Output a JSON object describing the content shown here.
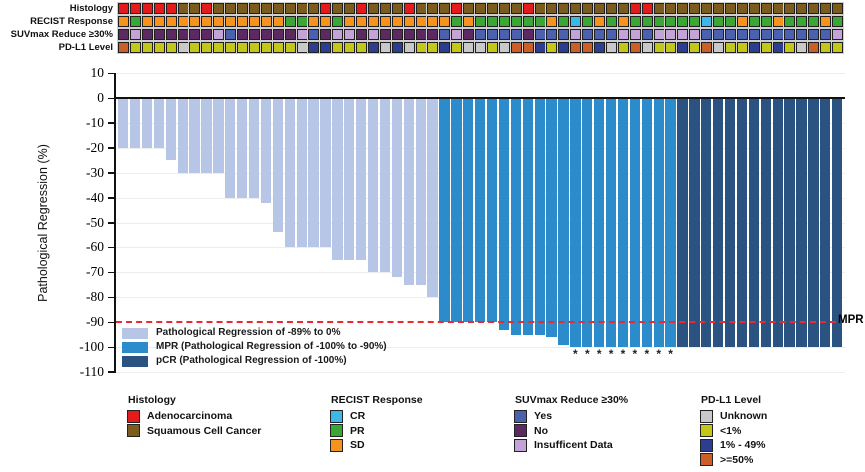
{
  "figure": {
    "mpr_label": "MPR"
  },
  "colors": {
    "adenocarcinoma": "#e31b1c",
    "squamous": "#7b5c1e",
    "cr": "#3db7e8",
    "pr": "#3aa634",
    "sd": "#f6921e",
    "suv_yes": "#4c61ae",
    "suv_no": "#5c2a60",
    "suv_insufficient": "#c4a4d6",
    "pdl1_unknown": "#c9c9c9",
    "pdl1_lt1": "#c3c719",
    "pdl1_1_49": "#2b3e92",
    "pdl1_ge50": "#cc5f27",
    "bar_light": "#b7c6e6",
    "bar_mpr": "#2c8bca",
    "bar_pcr": "#2b5381",
    "mpr_line": "#ea2a30"
  },
  "tracks": {
    "labels": [
      "Histology",
      "RECIST Response",
      "SUVmax Reduce ≥30%",
      "PD-L1 Level"
    ],
    "keys": [
      "histology",
      "recist",
      "suvmax",
      "pdl1"
    ],
    "code_colors": {
      "histology": {
        "A": "adenocarcinoma",
        "S": "squamous"
      },
      "recist": {
        "CR": "cr",
        "PR": "pr",
        "SD": "sd"
      },
      "suvmax": {
        "Y": "suv_yes",
        "N": "suv_no",
        "I": "suv_insufficient"
      },
      "pdl1": {
        "U": "pdl1_unknown",
        "L": "pdl1_lt1",
        "M": "pdl1_1_49",
        "H": "pdl1_ge50"
      }
    },
    "histology": [
      "A",
      "A",
      "A",
      "A",
      "A",
      "S",
      "S",
      "A",
      "S",
      "S",
      "S",
      "S",
      "S",
      "S",
      "S",
      "S",
      "S",
      "A",
      "S",
      "S",
      "A",
      "S",
      "S",
      "S",
      "A",
      "S",
      "S",
      "S",
      "A",
      "S",
      "S",
      "S",
      "S",
      "S",
      "A",
      "S",
      "S",
      "S",
      "S",
      "S",
      "S",
      "S",
      "S",
      "A",
      "A",
      "S",
      "S",
      "S",
      "S",
      "S",
      "S",
      "S",
      "S",
      "S",
      "S",
      "S",
      "S",
      "S",
      "S",
      "S",
      "S"
    ],
    "recist": [
      "SD",
      "PR",
      "SD",
      "SD",
      "SD",
      "SD",
      "SD",
      "SD",
      "SD",
      "SD",
      "SD",
      "SD",
      "SD",
      "SD",
      "PR",
      "PR",
      "SD",
      "SD",
      "PR",
      "SD",
      "SD",
      "SD",
      "SD",
      "SD",
      "SD",
      "SD",
      "SD",
      "SD",
      "PR",
      "SD",
      "PR",
      "PR",
      "PR",
      "PR",
      "PR",
      "PR",
      "SD",
      "PR",
      "CR",
      "PR",
      "SD",
      "PR",
      "SD",
      "PR",
      "PR",
      "PR",
      "PR",
      "PR",
      "PR",
      "CR",
      "PR",
      "PR",
      "SD",
      "PR",
      "PR",
      "SD",
      "PR",
      "PR",
      "PR",
      "SD",
      "PR"
    ],
    "suvmax": [
      "N",
      "I",
      "N",
      "N",
      "N",
      "N",
      "N",
      "N",
      "I",
      "Y",
      "N",
      "N",
      "N",
      "N",
      "N",
      "I",
      "Y",
      "N",
      "I",
      "I",
      "N",
      "I",
      "N",
      "N",
      "N",
      "N",
      "N",
      "Y",
      "I",
      "N",
      "Y",
      "Y",
      "Y",
      "Y",
      "N",
      "Y",
      "Y",
      "Y",
      "I",
      "Y",
      "Y",
      "Y",
      "I",
      "I",
      "Y",
      "I",
      "I",
      "I",
      "I",
      "Y",
      "Y",
      "Y",
      "Y",
      "Y",
      "Y",
      "Y",
      "Y",
      "Y",
      "Y",
      "Y",
      "I"
    ],
    "pdl1": [
      "H",
      "L",
      "L",
      "L",
      "L",
      "U",
      "L",
      "L",
      "L",
      "L",
      "L",
      "L",
      "L",
      "L",
      "L",
      "U",
      "M",
      "M",
      "L",
      "L",
      "L",
      "M",
      "U",
      "M",
      "U",
      "L",
      "L",
      "M",
      "L",
      "U",
      "U",
      "L",
      "U",
      "H",
      "H",
      "M",
      "L",
      "M",
      "H",
      "H",
      "M",
      "U",
      "L",
      "H",
      "U",
      "L",
      "L",
      "M",
      "L",
      "H",
      "U",
      "L",
      "L",
      "M",
      "L",
      "M",
      "L",
      "U",
      "H",
      "L",
      "L"
    ]
  },
  "chart_data": {
    "type": "bar",
    "title": "",
    "xlabel": "",
    "ylabel": "Pathological Regression (%)",
    "ylim": [
      -110,
      10
    ],
    "yticks": [
      10,
      0,
      -10,
      -20,
      -30,
      -40,
      -50,
      -60,
      -70,
      -80,
      -90,
      -100,
      -110
    ],
    "grid": "horizontal-light",
    "mpr_threshold": -90,
    "mpr_label": "MPR",
    "series": [
      {
        "name": "Pathological Regression of -89% to 0%",
        "color": "bar_light",
        "values": [
          -20,
          -20,
          -20,
          -20,
          -25,
          -30,
          -30,
          -30,
          -30,
          -40,
          -40,
          -40,
          -42,
          -54,
          -60,
          -60,
          -60,
          -60,
          -65,
          -65,
          -65,
          -70,
          -70,
          -72,
          -75,
          -75,
          -80
        ]
      },
      {
        "name": "MPR (Pathological Regression of -100% to -90%)",
        "color": "bar_mpr",
        "values": [
          -90,
          -90,
          -90,
          -90,
          -90,
          -93,
          -95,
          -95,
          -95,
          -96,
          -99,
          -100,
          -100,
          -100,
          -100,
          -100,
          -100,
          -100,
          -100,
          -100
        ]
      },
      {
        "name": "pCR (Pathological Regression of -100%)",
        "color": "bar_pcr",
        "values": [
          -100,
          -100,
          -100,
          -100,
          -100,
          -100,
          -100,
          -100,
          -100,
          -100,
          -100,
          -100,
          -100,
          -100
        ]
      }
    ],
    "asterisk_bar_indices": [
      38,
      39,
      40,
      41,
      42,
      43,
      44,
      45,
      46
    ],
    "asterisk_symbol": "*"
  },
  "bottom_legend": [
    {
      "title": "Histology",
      "items": [
        {
          "label": "Adenocarcinoma",
          "color": "adenocarcinoma"
        },
        {
          "label": "Squamous Cell Cancer",
          "color": "squamous"
        }
      ]
    },
    {
      "title": "RECIST Response",
      "items": [
        {
          "label": "CR",
          "color": "cr"
        },
        {
          "label": "PR",
          "color": "pr"
        },
        {
          "label": "SD",
          "color": "sd"
        }
      ]
    },
    {
      "title": "SUVmax Reduce ≥30%",
      "items": [
        {
          "label": "Yes",
          "color": "suv_yes"
        },
        {
          "label": "No",
          "color": "suv_no"
        },
        {
          "label": "Insufficent Data",
          "color": "suv_insufficient"
        }
      ]
    },
    {
      "title": "PD-L1 Level",
      "items": [
        {
          "label": "Unknown",
          "color": "pdl1_unknown"
        },
        {
          "label": "<1%",
          "color": "pdl1_lt1"
        },
        {
          "label": "1% - 49%",
          "color": "pdl1_1_49"
        },
        {
          "label": ">=50%",
          "color": "pdl1_ge50"
        }
      ]
    }
  ]
}
